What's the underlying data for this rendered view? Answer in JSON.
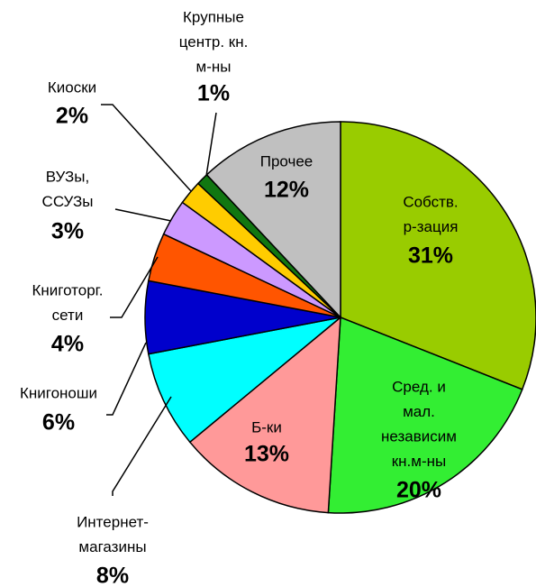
{
  "chart_data": {
    "type": "pie",
    "categories": [
      [
        "Собств.",
        "р-зация"
      ],
      [
        "Сред. и",
        "мал.",
        "независим",
        "кн.м-ны"
      ],
      [
        "Б-ки"
      ],
      [
        "Интернет-",
        "магазины"
      ],
      [
        "Книгоноши"
      ],
      [
        "Книготорг.",
        "сети"
      ],
      [
        "ВУЗы,",
        "ССУЗы"
      ],
      [
        "Киоски"
      ],
      [
        "Крупные",
        "центр. кн.",
        "м-ны"
      ],
      [
        "Прочее"
      ]
    ],
    "values": [
      31,
      20,
      13,
      8,
      6,
      4,
      3,
      2,
      1,
      12
    ],
    "value_labels": [
      "31%",
      "20%",
      "13%",
      "8%",
      "6%",
      "4%",
      "3%",
      "2%",
      "1%",
      "12%"
    ],
    "colors": [
      "#99cc00",
      "#33ee33",
      "#ff9999",
      "#00ffff",
      "#0000cc",
      "#ff5500",
      "#cc99ff",
      "#ffcc00",
      "#117711",
      "#c0c0c0"
    ]
  }
}
